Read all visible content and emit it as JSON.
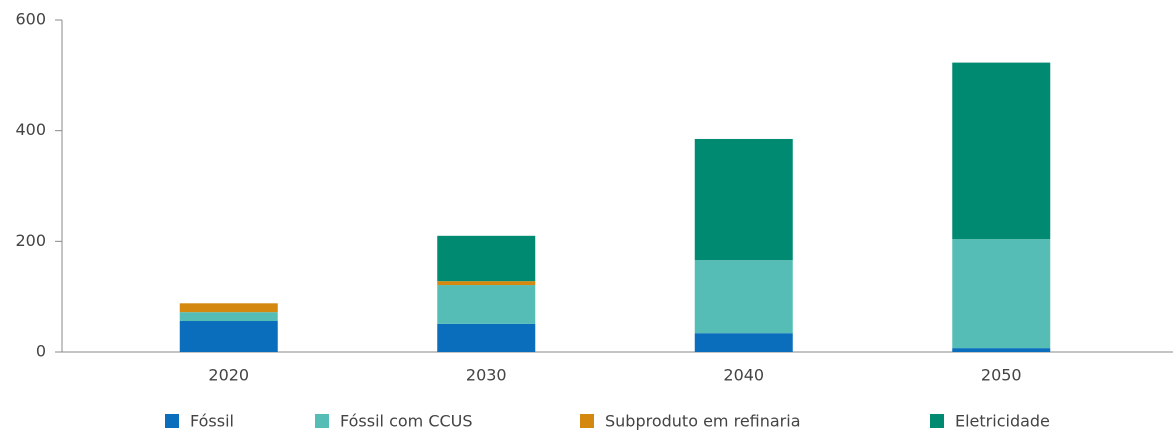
{
  "chart_data": {
    "type": "stacked-bar",
    "categories": [
      "2020",
      "2030",
      "2040",
      "2050"
    ],
    "series": [
      {
        "name": "Fóssil",
        "color": "#0a6ebd",
        "values": [
          56,
          51,
          34,
          7
        ]
      },
      {
        "name": "Fóssil com CCUS",
        "color": "#55bdb5",
        "values": [
          16,
          70,
          132,
          197
        ]
      },
      {
        "name": "Subproduto em refinaria",
        "color": "#d4880f",
        "values": [
          16,
          7,
          0,
          0
        ]
      },
      {
        "name": "Eletricidade",
        "color": "#008a72",
        "values": [
          0,
          82,
          219,
          319
        ]
      }
    ],
    "ylim": [
      0,
      600
    ],
    "yticks": [
      0,
      200,
      400,
      600
    ],
    "grid": false,
    "legend": "bottom"
  }
}
